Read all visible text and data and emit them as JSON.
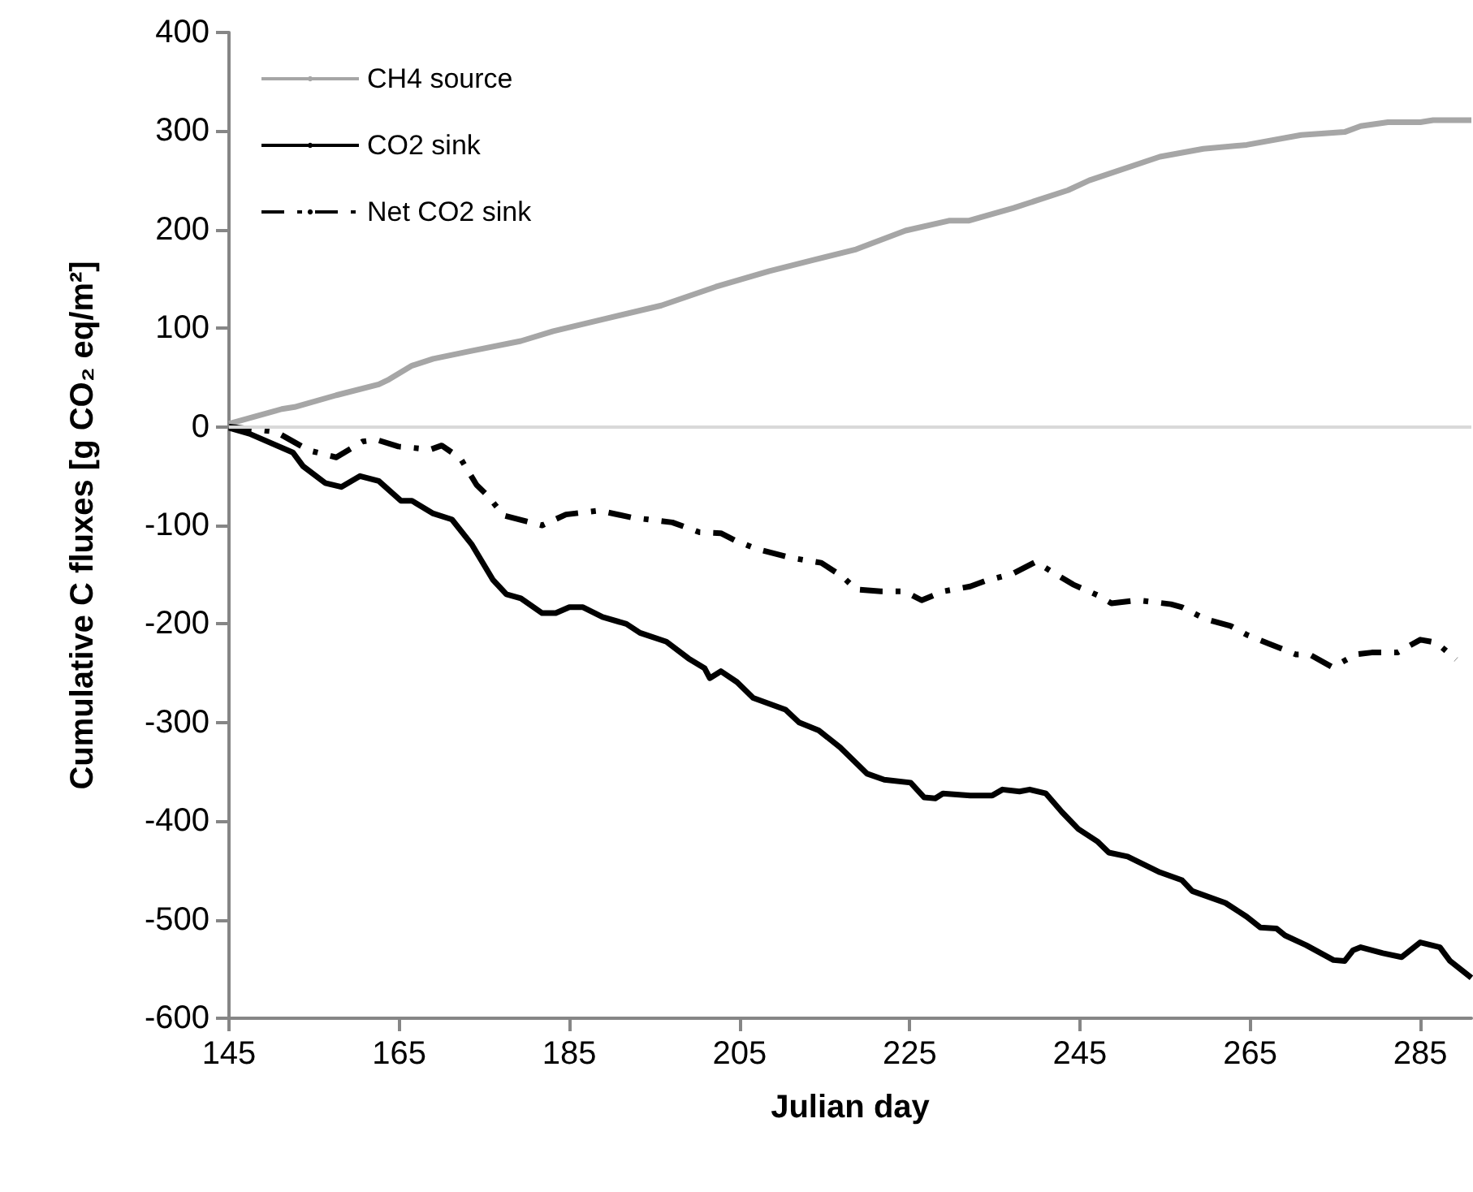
{
  "chart_data": {
    "type": "line",
    "xlabel": "Julian day",
    "ylabel": "Cumulative C fluxes [g CO₂ eq/m²]",
    "xlim": [
      145,
      291
    ],
    "xticks": [
      145,
      165,
      185,
      205,
      225,
      245,
      265,
      285
    ],
    "ylim": [
      -600,
      400
    ],
    "yticks": [
      -600,
      -500,
      -400,
      -300,
      -200,
      -100,
      0,
      100,
      200,
      300,
      400
    ],
    "grid": false,
    "legend": "top left",
    "marker": "none",
    "ref_lines": [
      {
        "axis": "y",
        "value": 0,
        "color": "#d9d9d9"
      }
    ],
    "series": [
      {
        "name": "CH4 source",
        "color": "#a6a6a6",
        "line_style": "solid",
        "x": [
          145,
          151.2,
          152.7,
          157.6,
          162.6,
          163.8,
          166.5,
          169,
          173.5,
          179.3,
          183.1,
          189.4,
          195.8,
          202.2,
          208.5,
          213.6,
          218.7,
          224.5,
          229.6,
          231.9,
          237.2,
          243.6,
          246.1,
          254.4,
          259.5,
          264.6,
          271,
          276.1,
          278,
          281.2,
          285,
          286.5,
          291
        ],
        "values": [
          3,
          18,
          20,
          32,
          43,
          48,
          62,
          69,
          77,
          87,
          97,
          110,
          123,
          142,
          158,
          169,
          180,
          199,
          209,
          209,
          222,
          240,
          250,
          274,
          282,
          286,
          296,
          299,
          305,
          309,
          309,
          311,
          311
        ]
      },
      {
        "name": "CO2 sink",
        "color": "#000000",
        "line_style": "solid",
        "x": [
          145,
          147.4,
          152.5,
          153.7,
          156.3,
          158.2,
          160.4,
          162.6,
          165.2,
          166.5,
          169,
          171.2,
          173.5,
          176,
          177.6,
          179.3,
          181.8,
          183.4,
          185,
          186.6,
          188.9,
          191.7,
          193.3,
          196.4,
          199,
          200.9,
          201.5,
          202.8,
          204.7,
          206.6,
          210.4,
          212,
          214.3,
          216.8,
          220,
          222,
          225.1,
          226.7,
          228,
          228.9,
          232.1,
          234.7,
          235.9,
          237.9,
          239.1,
          241,
          242.9,
          244.8,
          247.1,
          248.4,
          250.6,
          254.4,
          257,
          258.2,
          262.1,
          264.6,
          266.2,
          268.1,
          269.1,
          271.6,
          274.8,
          276.1,
          277.1,
          278,
          280.6,
          282.8,
          285,
          287.3,
          288.5,
          291
        ],
        "values": [
          -1,
          -7,
          -26,
          -40,
          -57,
          -61,
          -50,
          -55,
          -75,
          -75,
          -88,
          -94,
          -119,
          -155,
          -170,
          -174,
          -189,
          -189,
          -183,
          -183,
          -193,
          -200,
          -209,
          -218,
          -235,
          -245,
          -255,
          -248,
          -259,
          -275,
          -287,
          -300,
          -308,
          -325,
          -352,
          -358,
          -361,
          -376,
          -377,
          -372,
          -374,
          -374,
          -368,
          -370,
          -368,
          -372,
          -391,
          -408,
          -421,
          -432,
          -436,
          -452,
          -460,
          -471,
          -483,
          -497,
          -508,
          -509,
          -516,
          -526,
          -541,
          -542,
          -531,
          -528,
          -534,
          -538,
          -523,
          -528,
          -542,
          -559
        ]
      },
      {
        "name": "Net CO2 sink",
        "color": "#000000",
        "line_style": "dashdot",
        "x": [
          145,
          150.5,
          154.4,
          157.6,
          160.7,
          162.3,
          164.9,
          168.7,
          170,
          172.2,
          174.1,
          175.4,
          177.3,
          181.8,
          184.6,
          188.5,
          192.3,
          197.1,
          200.3,
          202.8,
          204.4,
          207,
          211.1,
          214.6,
          217.1,
          218.7,
          221.6,
          224.4,
          226.4,
          228.9,
          232.1,
          234,
          237.1,
          239.8,
          241.7,
          244.2,
          247.1,
          248.7,
          251.9,
          255.7,
          257,
          259.7,
          262.7,
          264.6,
          267.2,
          270.4,
          272,
          274.7,
          277.4,
          279.3,
          282.3,
          285,
          286.9,
          289.2
        ],
        "values": [
          0,
          -5,
          -24,
          -31,
          -15,
          -13,
          -20,
          -23,
          -19,
          -32,
          -59,
          -70,
          -90,
          -100,
          -89,
          -85,
          -92,
          -97,
          -107,
          -108,
          -115,
          -124,
          -133,
          -138,
          -152,
          -165,
          -167,
          -167,
          -176,
          -167,
          -162,
          -156,
          -149,
          -137,
          -147,
          -160,
          -171,
          -179,
          -176,
          -180,
          -183,
          -195,
          -202,
          -211,
          -220,
          -231,
          -231,
          -244,
          -231,
          -229,
          -229,
          -216,
          -219,
          -236
        ]
      }
    ]
  }
}
